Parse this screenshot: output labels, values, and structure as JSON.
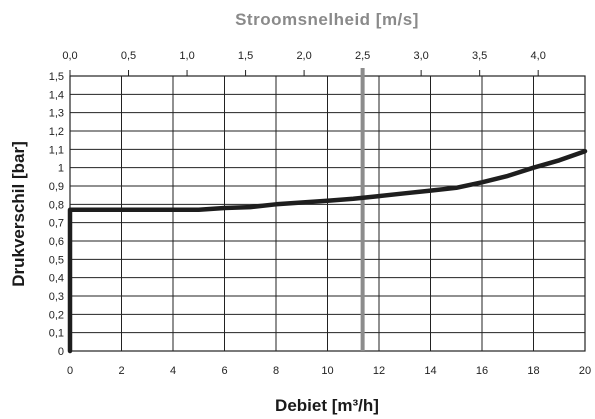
{
  "chart_data": {
    "type": "line",
    "title": "",
    "xlabel": "Debiet [m³/h]",
    "ylabel": "Drukverschil [bar]",
    "x2label": "Stroomsnelheid [m/s]",
    "xlim": [
      0,
      20
    ],
    "ylim": [
      0,
      1.5
    ],
    "x2lim": [
      0,
      4.4
    ],
    "x_ticks": [
      "0",
      "2",
      "4",
      "6",
      "8",
      "10",
      "12",
      "14",
      "16",
      "18",
      "20"
    ],
    "y_ticks": [
      "0",
      "0,1",
      "0,2",
      "0,3",
      "0,4",
      "0,5",
      "0,6",
      "0,7",
      "0,8",
      "0,9",
      "1",
      "1,1",
      "1,2",
      "1,3",
      "1,4",
      "1,5"
    ],
    "x2_ticks": [
      "0,0",
      "0,5",
      "1,0",
      "1,5",
      "2,0",
      "2,5",
      "3,0",
      "3,5",
      "4,0"
    ],
    "grid": true,
    "marker_line": {
      "x2": 2.5,
      "color": "#8c8c8c"
    },
    "series": [
      {
        "color": "#1e1e1e",
        "x": [
          0,
          0,
          1,
          2,
          3,
          4,
          5,
          6,
          7,
          8,
          9,
          10,
          11,
          12,
          13,
          14,
          15,
          16,
          17,
          18,
          19,
          20
        ],
        "y": [
          0,
          0.77,
          0.77,
          0.77,
          0.77,
          0.77,
          0.77,
          0.78,
          0.785,
          0.8,
          0.81,
          0.82,
          0.83,
          0.845,
          0.86,
          0.875,
          0.89,
          0.92,
          0.955,
          1.0,
          1.04,
          1.09
        ]
      }
    ]
  }
}
